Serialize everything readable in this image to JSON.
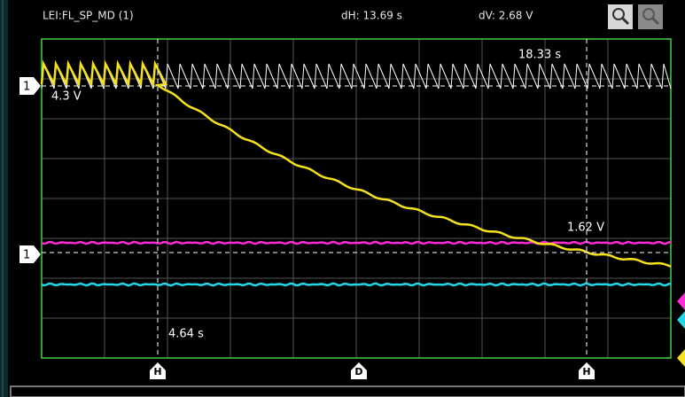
{
  "header": {
    "channel": "LEI:FL_SP_MD (1)",
    "dH": "dH: 13.69 s",
    "dV": "dV: 2.68 V"
  },
  "cursors": {
    "time_right": "18.33 s",
    "time_left": "4.64 s",
    "volt_top": "4.3 V",
    "volt_bottom": "1.62 V"
  },
  "markers": {
    "ref_top": "1",
    "ref_bottom": "1",
    "cursor_left": "H",
    "delay": "D",
    "cursor_right": "H"
  }
}
